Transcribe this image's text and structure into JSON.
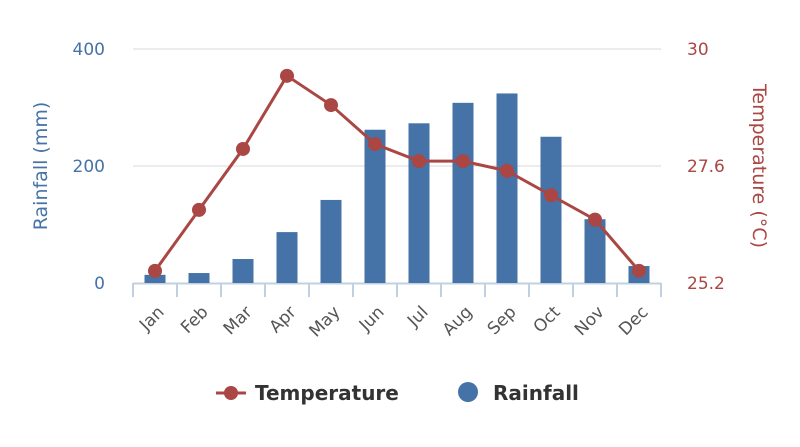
{
  "chart_data": {
    "type": "bar",
    "categories": [
      "Jan",
      "Feb",
      "Mar",
      "Apr",
      "May",
      "Jun",
      "Jul",
      "Aug",
      "Sep",
      "Oct",
      "Nov",
      "Dec"
    ],
    "series": [
      {
        "name": "Rainfall",
        "type": "bar",
        "axis": "left",
        "color": "#4572a7",
        "values": [
          14,
          17,
          41,
          87,
          142,
          262,
          273,
          308,
          324,
          250,
          109,
          29
        ]
      },
      {
        "name": "Temperature",
        "type": "line",
        "axis": "right",
        "color": "#aa4643",
        "values": [
          25.45,
          26.7,
          27.95,
          29.45,
          28.85,
          28.05,
          27.7,
          27.7,
          27.5,
          27.0,
          26.5,
          25.45
        ]
      }
    ],
    "left_axis": {
      "label": "Rainfall (mm)",
      "ticks": [
        "0",
        "200",
        "400"
      ],
      "ylim": [
        0,
        400
      ]
    },
    "right_axis": {
      "label": "Temperature (°C)",
      "ticks": [
        "25.2",
        "27.6",
        "30"
      ],
      "ylim": [
        25.2,
        30
      ]
    },
    "grid": true,
    "legend_position": "bottom",
    "legend": [
      "Temperature",
      "Rainfall"
    ]
  }
}
